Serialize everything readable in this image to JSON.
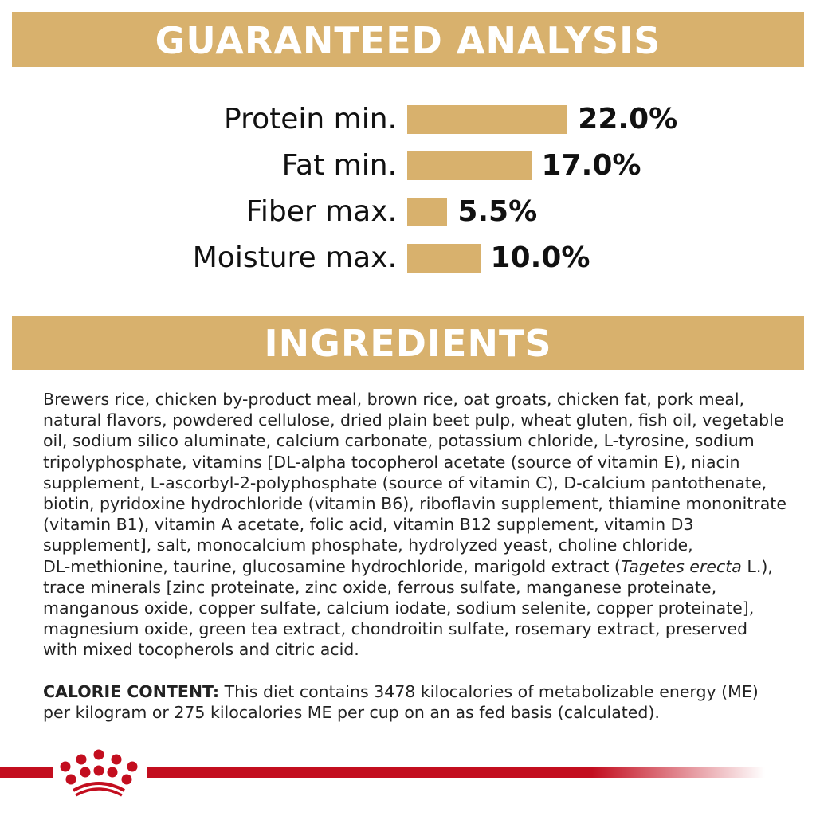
{
  "analysis": {
    "title": "GUARANTEED ANALYSIS",
    "rows": [
      {
        "label": "Protein min.",
        "value": "22.0%",
        "percent": 22.0
      },
      {
        "label": "Fat min.",
        "value": "17.0%",
        "percent": 17.0
      },
      {
        "label": "Fiber max.",
        "value": "5.5%",
        "percent": 5.5
      },
      {
        "label": "Moisture max.",
        "value": "10.0%",
        "percent": 10.0
      }
    ],
    "bar_color": "#d8b16d"
  },
  "ingredients": {
    "title": "INGREDIENTS",
    "lines": [
      "Brewers rice, chicken by-product meal, brown rice, oat groats, chicken fat, pork meal,",
      "natural flavors, powdered cellulose, dried plain beet pulp, wheat gluten, fish oil, vegetable",
      "oil, sodium silico aluminate, calcium carbonate, potassium chloride, L-tyrosine, sodium",
      "tripolyphosphate, vitamins [DL-alpha tocopherol acetate (source of vitamin E), niacin",
      "supplement, L-ascorbyl-2-polyphosphate (source of vitamin C), D-calcium pantothenate,",
      "biotin, pyridoxine hydrochloride (vitamin B6), riboflavin supplement, thiamine mononitrate",
      "(vitamin B1), vitamin A acetate, folic acid, vitamin B12 supplement, vitamin D3",
      "supplement], salt, monocalcium phosphate, hydrolyzed yeast, choline chloride,",
      "DL-methionine, taurine, glucosamine hydrochloride, marigold extract (",
      "trace minerals [zinc proteinate, zinc oxide, ferrous sulfate, manganese proteinate,",
      "manganous oxide, copper sulfate, calcium iodate, sodium selenite, copper proteinate],",
      "magnesium oxide, green tea extract, chondroitin sulfate, rosemary extract, preserved",
      "with mixed tocopherols and citric acid."
    ],
    "italic_name": "Tagetes erecta",
    "italic_suffix": " L.),"
  },
  "calorie": {
    "label": "CALORIE CONTENT:",
    "line1": " This diet contains 3478 kilocalories of metabolizable energy (ME)",
    "line2": "per kilogram or 275 kilocalories ME per cup on an as fed basis (calculated)."
  },
  "brand": {
    "logo": "crown-logo",
    "color": "#c30e1f"
  }
}
